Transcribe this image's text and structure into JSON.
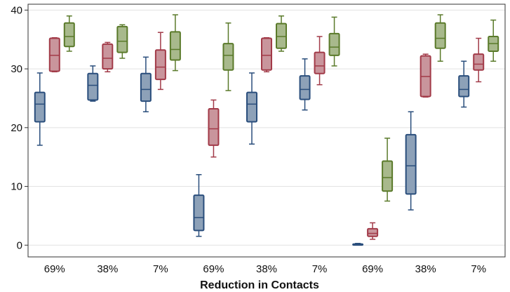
{
  "chart_data": {
    "type": "box",
    "title": "",
    "xlabel": "Reduction in Contacts",
    "ylabel": "",
    "ylim": [
      -2,
      41
    ],
    "yticks": [
      0,
      10,
      20,
      30,
      40
    ],
    "grid": true,
    "legend": "none",
    "series_colors": {
      "blue": {
        "fill": "#8da1b8",
        "stroke": "#2a4e7c"
      },
      "red": {
        "fill": "#c9959c",
        "stroke": "#a23a48"
      },
      "green": {
        "fill": "#a8b98c",
        "stroke": "#5a7a2a"
      }
    },
    "groups": [
      {
        "label": "69%",
        "boxes": [
          {
            "color": "blue",
            "min": 17,
            "q1": 21,
            "median": 24,
            "q3": 26,
            "max": 29.3
          },
          {
            "color": "red",
            "min": 29.5,
            "q1": 29.6,
            "median": 32.3,
            "q3": 35.2,
            "max": 35.3
          },
          {
            "color": "green",
            "min": 33,
            "q1": 33.8,
            "median": 35.5,
            "q3": 37.8,
            "max": 39
          }
        ]
      },
      {
        "label": "38%",
        "boxes": [
          {
            "color": "blue",
            "min": 24.5,
            "q1": 24.7,
            "median": 27.2,
            "q3": 29.2,
            "max": 30.5
          },
          {
            "color": "red",
            "min": 29.5,
            "q1": 30,
            "median": 31.8,
            "q3": 34.2,
            "max": 34.5
          },
          {
            "color": "green",
            "min": 31.8,
            "q1": 32.8,
            "median": 34.7,
            "q3": 37.2,
            "max": 37.5
          }
        ]
      },
      {
        "label": "7%",
        "boxes": [
          {
            "color": "blue",
            "min": 22.7,
            "q1": 24.5,
            "median": 26.5,
            "q3": 29.2,
            "max": 32
          },
          {
            "color": "red",
            "min": 26.5,
            "q1": 28.2,
            "median": 30.3,
            "q3": 33.2,
            "max": 36.2
          },
          {
            "color": "green",
            "min": 29.7,
            "q1": 31.5,
            "median": 33.3,
            "q3": 36.3,
            "max": 39.2
          }
        ]
      },
      {
        "label": "69%",
        "boxes": [
          {
            "color": "blue",
            "min": 1.5,
            "q1": 2.5,
            "median": 4.7,
            "q3": 8.5,
            "max": 12
          },
          {
            "color": "red",
            "min": 15,
            "q1": 17,
            "median": 19.8,
            "q3": 23.2,
            "max": 24.7
          },
          {
            "color": "green",
            "min": 26.3,
            "q1": 29.8,
            "median": 32.3,
            "q3": 34.3,
            "max": 37.8
          }
        ]
      },
      {
        "label": "38%",
        "boxes": [
          {
            "color": "blue",
            "min": 17.2,
            "q1": 21,
            "median": 24,
            "q3": 26,
            "max": 29.3
          },
          {
            "color": "red",
            "min": 29.5,
            "q1": 29.8,
            "median": 32.3,
            "q3": 35.2,
            "max": 35.3
          },
          {
            "color": "green",
            "min": 33,
            "q1": 33.5,
            "median": 35.5,
            "q3": 37.7,
            "max": 39
          }
        ]
      },
      {
        "label": "7%",
        "boxes": [
          {
            "color": "blue",
            "min": 23,
            "q1": 24.8,
            "median": 26.5,
            "q3": 28.8,
            "max": 31.7
          },
          {
            "color": "red",
            "min": 27.3,
            "q1": 29.2,
            "median": 30.5,
            "q3": 32.8,
            "max": 35.5
          },
          {
            "color": "green",
            "min": 30.5,
            "q1": 32.3,
            "median": 33.7,
            "q3": 36,
            "max": 38.8
          }
        ]
      },
      {
        "label": "69%",
        "boxes": [
          {
            "color": "blue",
            "min": 0,
            "q1": 0.05,
            "median": 0.1,
            "q3": 0.2,
            "max": 0.3
          },
          {
            "color": "red",
            "min": 1,
            "q1": 1.5,
            "median": 2,
            "q3": 2.8,
            "max": 3.8
          },
          {
            "color": "green",
            "min": 7.5,
            "q1": 9.2,
            "median": 11.5,
            "q3": 14.3,
            "max": 18.2
          }
        ]
      },
      {
        "label": "38%",
        "boxes": [
          {
            "color": "blue",
            "min": 6,
            "q1": 8.7,
            "median": 13.5,
            "q3": 18.8,
            "max": 22.7
          },
          {
            "color": "red",
            "min": 25.2,
            "q1": 25.3,
            "median": 28.7,
            "q3": 32.2,
            "max": 32.5
          },
          {
            "color": "green",
            "min": 31.3,
            "q1": 33.5,
            "median": 35.2,
            "q3": 37.8,
            "max": 39.2
          }
        ]
      },
      {
        "label": "7%",
        "boxes": [
          {
            "color": "blue",
            "min": 23.5,
            "q1": 25.3,
            "median": 26.5,
            "q3": 28.8,
            "max": 31.3
          },
          {
            "color": "red",
            "min": 27.8,
            "q1": 29.8,
            "median": 30.8,
            "q3": 32.5,
            "max": 35.2
          },
          {
            "color": "green",
            "min": 31.3,
            "q1": 33,
            "median": 34.3,
            "q3": 35.5,
            "max": 38.3
          }
        ]
      }
    ]
  }
}
